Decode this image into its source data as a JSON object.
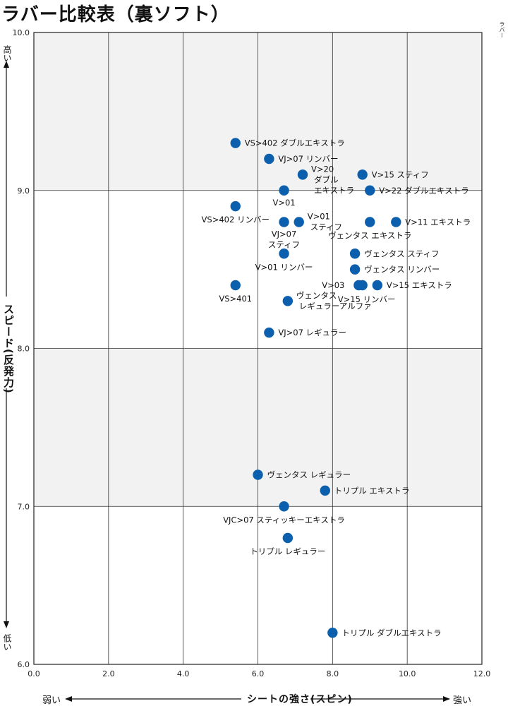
{
  "title": "ラバー比較表（裏ソフト）",
  "corner_note": "ラバー",
  "y_axis": {
    "label": "スピード(反発力)",
    "high": "高い",
    "low": "低い"
  },
  "x_axis": {
    "label": "シートの強さ(スピン)",
    "weak": "弱い",
    "strong": "強い"
  },
  "chart_data": {
    "type": "scatter",
    "title": "ラバー比較表（裏ソフト）",
    "xlabel": "シートの強さ(スピン)",
    "ylabel": "スピード(反発力)",
    "xlim": [
      0,
      12
    ],
    "ylim": [
      6,
      10
    ],
    "x_ticks": [
      "0.0",
      "2.0",
      "4.0",
      "6.0",
      "8.0",
      "10.0",
      "12.0"
    ],
    "y_ticks": [
      "6.0",
      "7.0",
      "8.0",
      "9.0",
      "10.0"
    ],
    "grid": true,
    "band_color": "#f2f2f2",
    "point_color": "#0b5fad",
    "points": [
      {
        "label": "VS>402 ダブルエキストラ",
        "x": 5.4,
        "y": 9.3
      },
      {
        "label": "VJ>07 リンバー",
        "x": 6.3,
        "y": 9.2
      },
      {
        "label": "V>20 ダブル エキストラ",
        "x": 7.2,
        "y": 9.1
      },
      {
        "label": "V>15 スティフ",
        "x": 8.8,
        "y": 9.1
      },
      {
        "label": "V>01",
        "x": 6.7,
        "y": 9.0
      },
      {
        "label": "V>22 ダブルエキストラ",
        "x": 9.0,
        "y": 9.0
      },
      {
        "label": "VS>402 リンバー",
        "x": 5.4,
        "y": 8.9
      },
      {
        "label": "VJ>07 スティフ",
        "x": 6.7,
        "y": 8.8
      },
      {
        "label": "V>01 スティフ",
        "x": 7.1,
        "y": 8.8
      },
      {
        "label": "ヴェンタス エキストラ",
        "x": 9.0,
        "y": 8.8
      },
      {
        "label": "V>11 エキストラ",
        "x": 9.7,
        "y": 8.8
      },
      {
        "label": "V>01 リンバー",
        "x": 6.7,
        "y": 8.6
      },
      {
        "label": "ヴェンタス スティフ",
        "x": 8.6,
        "y": 8.6
      },
      {
        "label": "ヴェンタス リンバー",
        "x": 8.6,
        "y": 8.5
      },
      {
        "label": "VS>401",
        "x": 5.4,
        "y": 8.4
      },
      {
        "label": "V>03",
        "x": 8.7,
        "y": 8.4
      },
      {
        "label": "V>15 リンバー",
        "x": 8.8,
        "y": 8.4
      },
      {
        "label": "V>15 エキストラ",
        "x": 9.2,
        "y": 8.4
      },
      {
        "label": "ヴェンタス レギュラーアルファ",
        "x": 6.8,
        "y": 8.3
      },
      {
        "label": "VJ>07 レギュラー",
        "x": 6.3,
        "y": 8.1
      },
      {
        "label": "ヴェンタス レギュラー",
        "x": 6.0,
        "y": 7.2
      },
      {
        "label": "トリプル エキストラ",
        "x": 7.8,
        "y": 7.1
      },
      {
        "label": "VJC>07 スティッキーエキストラ",
        "x": 6.7,
        "y": 7.0
      },
      {
        "label": "トリプル レギュラー",
        "x": 6.8,
        "y": 6.8
      },
      {
        "label": "トリプル ダブルエキストラ",
        "x": 8.0,
        "y": 6.2
      }
    ]
  }
}
